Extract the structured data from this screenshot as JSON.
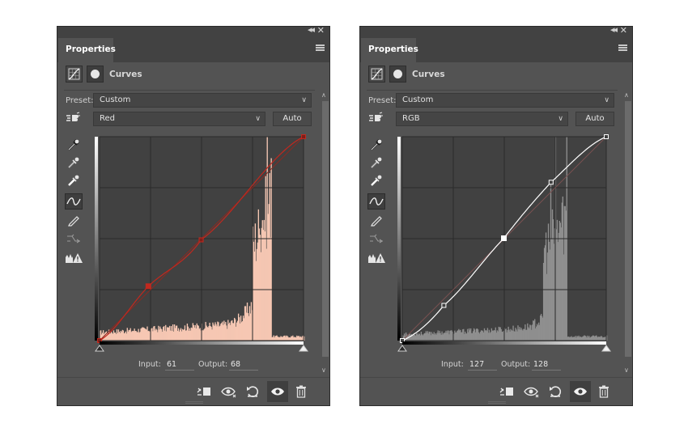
{
  "colors": {
    "panel_bg": "#535353",
    "tab_bar": "#424242",
    "graph_bg": "#414141",
    "red_curve": "#c2281e",
    "red_histogram": "#f6c7b3",
    "rgb_curve": "#ffffff",
    "rgb_histogram": "#8f8f8f"
  },
  "panels": [
    {
      "tab_label": "Properties",
      "adjustment_title": "Curves",
      "preset_label": "Preset:",
      "preset_value": "Custom",
      "channel_value": "Red",
      "auto_label": "Auto",
      "input_label": "Input:",
      "input_value": "61",
      "output_label": "Output:",
      "output_value": "68",
      "curve": {
        "color": "#c2281e",
        "points": [
          [
            0,
            0
          ],
          [
            61,
            68
          ],
          [
            127,
            126
          ],
          [
            255,
            255
          ]
        ],
        "selected_point": 1
      },
      "histogram_color": "#f6c7b3",
      "icons": {
        "collapse": "collapse-icon",
        "close": "close-icon",
        "panel_menu": "menu-icon",
        "on_image_adjust": "targeted-adjustment-icon",
        "tools": [
          "eyedropper-black-icon",
          "eyedropper-gray-icon",
          "eyedropper-white-icon",
          "curve-edit-icon",
          "pencil-icon",
          "smooth-icon",
          "clipping-warning-icon"
        ],
        "footer": [
          "clip-to-layer-icon",
          "view-previous-icon",
          "reset-icon",
          "visibility-icon",
          "trash-icon"
        ]
      }
    },
    {
      "tab_label": "Properties",
      "adjustment_title": "Curves",
      "preset_label": "Preset:",
      "preset_value": "Custom",
      "channel_value": "RGB",
      "auto_label": "Auto",
      "input_label": "Input:",
      "input_value": "127",
      "output_label": "Output:",
      "output_value": "128",
      "curve": {
        "color": "#ffffff",
        "points": [
          [
            0,
            0
          ],
          [
            52,
            44
          ],
          [
            127,
            128
          ],
          [
            186,
            198
          ],
          [
            255,
            255
          ]
        ],
        "selected_point": 2
      },
      "histogram_color": "#8f8f8f",
      "icons": {
        "collapse": "collapse-icon",
        "close": "close-icon",
        "panel_menu": "menu-icon",
        "on_image_adjust": "targeted-adjustment-icon",
        "tools": [
          "eyedropper-black-icon",
          "eyedropper-gray-icon",
          "eyedropper-white-icon",
          "curve-edit-icon",
          "pencil-icon",
          "smooth-icon",
          "clipping-warning-icon"
        ],
        "footer": [
          "clip-to-layer-icon",
          "view-previous-icon",
          "reset-icon",
          "visibility-icon",
          "trash-icon"
        ]
      }
    }
  ]
}
